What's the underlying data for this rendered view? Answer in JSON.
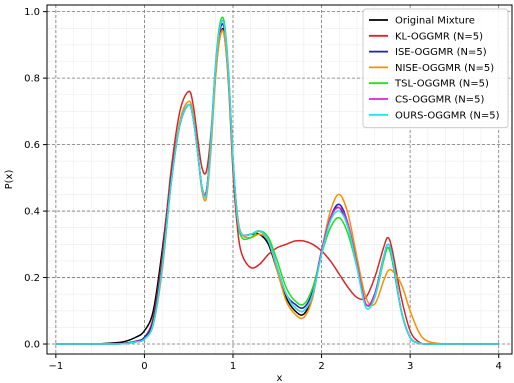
{
  "chart_data": {
    "type": "line",
    "xlabel": "x",
    "ylabel": "P(x)",
    "xlim": [
      -1.1,
      4.15
    ],
    "ylim": [
      -0.03,
      1.02
    ],
    "xticks": [
      -1,
      0,
      1,
      2,
      3,
      4
    ],
    "yticks": [
      0.0,
      0.2,
      0.4,
      0.6,
      0.8,
      1.0
    ],
    "grid": true,
    "minor_grid": true,
    "legend_position": "top-right",
    "x": [
      -1.0,
      -0.75,
      -0.5,
      -0.25,
      -0.1,
      0.0,
      0.1,
      0.2,
      0.3,
      0.4,
      0.5,
      0.55,
      0.6,
      0.65,
      0.7,
      0.75,
      0.8,
      0.85,
      0.9,
      0.95,
      1.0,
      1.05,
      1.1,
      1.2,
      1.3,
      1.4,
      1.5,
      1.6,
      1.7,
      1.8,
      1.9,
      2.0,
      2.1,
      2.2,
      2.3,
      2.4,
      2.5,
      2.6,
      2.7,
      2.75,
      2.8,
      2.9,
      3.0,
      3.1,
      3.2,
      3.4,
      3.7,
      4.0
    ],
    "series": [
      {
        "name": "Original Mixture",
        "color": "#000000",
        "values": [
          0,
          0,
          0.001,
          0.006,
          0.02,
          0.04,
          0.1,
          0.28,
          0.5,
          0.66,
          0.72,
          0.68,
          0.58,
          0.47,
          0.46,
          0.6,
          0.8,
          0.92,
          0.94,
          0.8,
          0.55,
          0.38,
          0.33,
          0.33,
          0.33,
          0.3,
          0.22,
          0.14,
          0.1,
          0.09,
          0.15,
          0.28,
          0.38,
          0.41,
          0.35,
          0.24,
          0.12,
          0.15,
          0.26,
          0.29,
          0.25,
          0.1,
          0.02,
          0.003,
          0,
          0,
          0,
          0
        ]
      },
      {
        "name": "KL-OGGMR (N=5)",
        "color": "#d62728",
        "values": [
          0,
          0,
          0,
          0.002,
          0.008,
          0.02,
          0.08,
          0.26,
          0.52,
          0.7,
          0.76,
          0.72,
          0.62,
          0.53,
          0.52,
          0.63,
          0.82,
          0.93,
          0.93,
          0.78,
          0.52,
          0.35,
          0.27,
          0.23,
          0.24,
          0.27,
          0.29,
          0.3,
          0.31,
          0.31,
          0.3,
          0.28,
          0.25,
          0.21,
          0.17,
          0.14,
          0.14,
          0.2,
          0.29,
          0.32,
          0.28,
          0.14,
          0.04,
          0.006,
          0,
          0,
          0,
          0
        ]
      },
      {
        "name": "ISE-OGGMR (N=5)",
        "color": "#1f1fbf",
        "values": [
          0,
          0,
          0,
          0.002,
          0.008,
          0.02,
          0.07,
          0.24,
          0.49,
          0.66,
          0.72,
          0.68,
          0.58,
          0.47,
          0.46,
          0.6,
          0.81,
          0.94,
          0.95,
          0.8,
          0.55,
          0.38,
          0.33,
          0.33,
          0.34,
          0.31,
          0.23,
          0.15,
          0.12,
          0.11,
          0.16,
          0.28,
          0.38,
          0.42,
          0.36,
          0.24,
          0.12,
          0.15,
          0.26,
          0.3,
          0.26,
          0.1,
          0.02,
          0.003,
          0,
          0,
          0,
          0
        ]
      },
      {
        "name": "NISE-OGGMR (N=5)",
        "color": "#ff8c00",
        "values": [
          0,
          0,
          0,
          0.001,
          0.006,
          0.015,
          0.06,
          0.22,
          0.48,
          0.67,
          0.73,
          0.69,
          0.58,
          0.46,
          0.44,
          0.58,
          0.79,
          0.92,
          0.93,
          0.79,
          0.55,
          0.39,
          0.33,
          0.32,
          0.33,
          0.31,
          0.22,
          0.13,
          0.09,
          0.08,
          0.14,
          0.28,
          0.4,
          0.45,
          0.39,
          0.26,
          0.14,
          0.12,
          0.19,
          0.22,
          0.22,
          0.18,
          0.1,
          0.035,
          0.008,
          0,
          0,
          0
        ]
      },
      {
        "name": "TSL-OGGMR (N=5)",
        "color": "#22dd22",
        "values": [
          0,
          0,
          0,
          0.001,
          0.006,
          0.015,
          0.06,
          0.23,
          0.48,
          0.66,
          0.72,
          0.68,
          0.58,
          0.47,
          0.46,
          0.61,
          0.83,
          0.96,
          0.97,
          0.82,
          0.56,
          0.38,
          0.32,
          0.32,
          0.34,
          0.32,
          0.25,
          0.17,
          0.13,
          0.12,
          0.17,
          0.27,
          0.35,
          0.38,
          0.33,
          0.23,
          0.12,
          0.14,
          0.25,
          0.29,
          0.25,
          0.1,
          0.02,
          0.003,
          0,
          0,
          0,
          0
        ]
      },
      {
        "name": "CS-OGGMR (N=5)",
        "color": "#dd22dd",
        "values": [
          0,
          0,
          0,
          0.001,
          0.006,
          0.015,
          0.06,
          0.23,
          0.48,
          0.66,
          0.72,
          0.68,
          0.58,
          0.47,
          0.46,
          0.6,
          0.82,
          0.95,
          0.96,
          0.81,
          0.56,
          0.38,
          0.33,
          0.33,
          0.34,
          0.31,
          0.23,
          0.15,
          0.11,
          0.1,
          0.15,
          0.28,
          0.38,
          0.41,
          0.36,
          0.24,
          0.12,
          0.15,
          0.26,
          0.3,
          0.26,
          0.1,
          0.02,
          0.003,
          0,
          0,
          0,
          0
        ]
      },
      {
        "name": "OURS-OGGMR (N=5)",
        "color": "#22e5e5",
        "values": [
          0,
          0,
          0,
          0.001,
          0.006,
          0.015,
          0.06,
          0.23,
          0.48,
          0.66,
          0.72,
          0.68,
          0.58,
          0.47,
          0.45,
          0.6,
          0.82,
          0.95,
          0.96,
          0.81,
          0.56,
          0.38,
          0.33,
          0.33,
          0.34,
          0.31,
          0.23,
          0.15,
          0.11,
          0.1,
          0.15,
          0.27,
          0.37,
          0.4,
          0.35,
          0.23,
          0.11,
          0.14,
          0.26,
          0.3,
          0.26,
          0.1,
          0.02,
          0.003,
          0,
          0,
          0,
          0
        ]
      }
    ]
  }
}
